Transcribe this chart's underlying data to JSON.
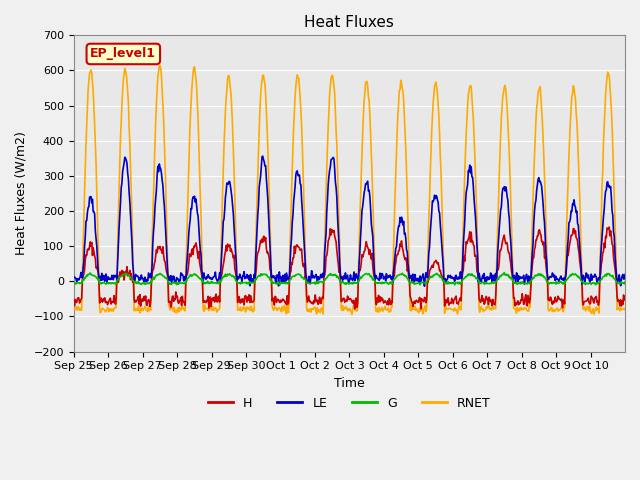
{
  "title": "Heat Fluxes",
  "xlabel": "Time",
  "ylabel": "Heat Fluxes (W/m2)",
  "ylim": [
    -200,
    700
  ],
  "yticks": [
    -200,
    -100,
    0,
    100,
    200,
    300,
    400,
    500,
    600,
    700
  ],
  "xtick_labels": [
    "Sep 25",
    "Sep 26",
    "Sep 27",
    "Sep 28",
    "Sep 29",
    "Sep 30",
    "Oct 1",
    "Oct 2",
    "Oct 3",
    "Oct 4",
    "Oct 5",
    "Oct 6",
    "Oct 7",
    "Oct 8",
    "Oct 9",
    "Oct 10"
  ],
  "legend_labels": [
    "H",
    "LE",
    "G",
    "RNET"
  ],
  "colors": {
    "H": "#cc0000",
    "LE": "#0000cc",
    "G": "#00bb00",
    "RNET": "#ffaa00"
  },
  "annotation_text": "EP_level1",
  "annotation_color": "#cc0000",
  "annotation_bg": "#ffffcc",
  "fig_bg": "#f0f0f0",
  "plot_bg": "#e8e8e8",
  "line_width": 1.2,
  "n_days": 16,
  "hours_per_day": 24,
  "dt": 0.5
}
